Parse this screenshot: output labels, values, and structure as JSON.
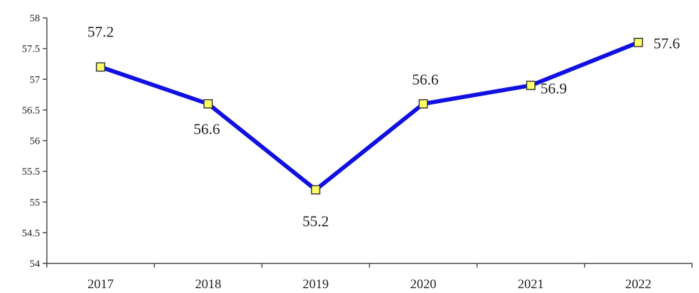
{
  "chart_data": {
    "type": "line",
    "categories": [
      "2017",
      "2018",
      "2019",
      "2020",
      "2021",
      "2022"
    ],
    "values": [
      57.2,
      56.6,
      55.2,
      56.6,
      56.9,
      57.6
    ],
    "data_labels": [
      "57.2",
      "56.6",
      "55.2",
      "56.6",
      "56.9",
      "57.6"
    ],
    "y_ticks": [
      "54",
      "54.5",
      "55",
      "55.5",
      "56",
      "56.5",
      "57",
      "57.5",
      "58"
    ],
    "ylim": [
      54,
      58
    ],
    "grid": false,
    "legend": "none",
    "line_color": "#1010e0",
    "marker_fill": "#ffff66",
    "marker_stroke": "#333333"
  }
}
